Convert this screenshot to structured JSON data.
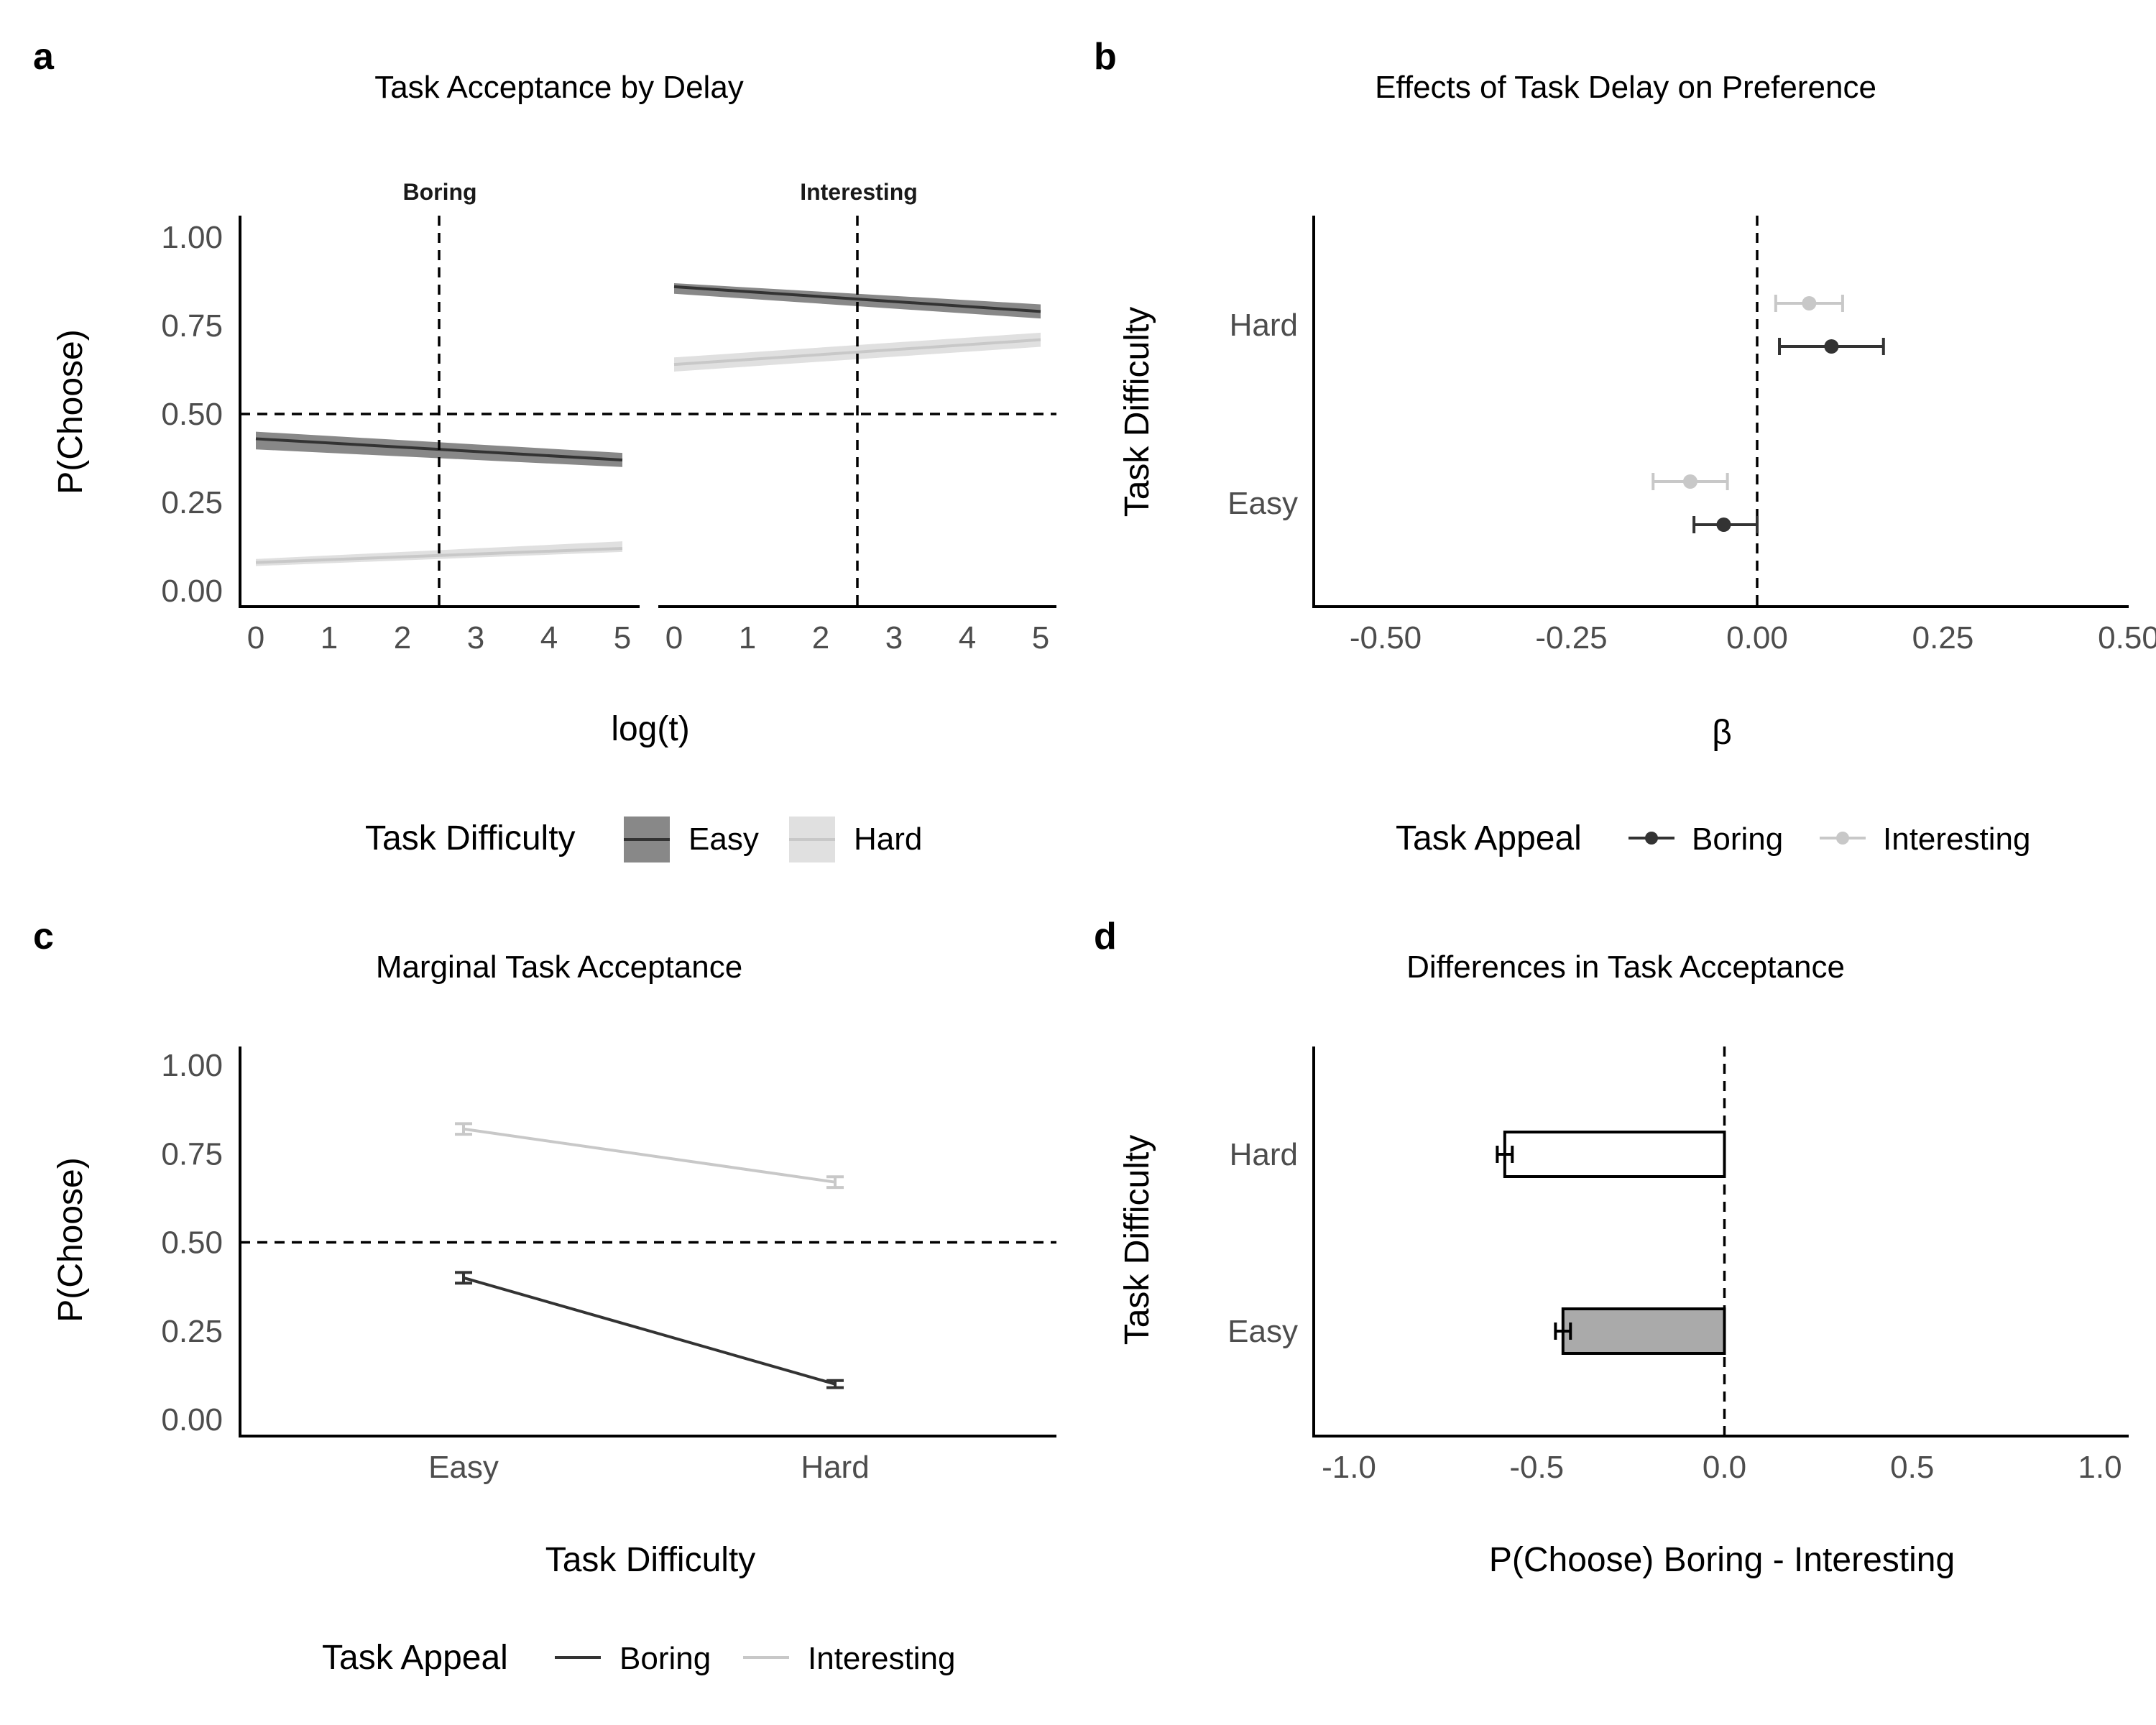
{
  "colors": {
    "boring": "#333333",
    "interesting": "#c8c8c8",
    "easy_band": "#888888",
    "hard_band": "#e0e0e0",
    "bar_easy": "#aaaaaa",
    "bar_hard": "#ffffff"
  },
  "chart_data": [
    {
      "panel": "a",
      "type": "line",
      "title": "Task Acceptance by Delay",
      "xlabel": "log(t)",
      "ylabel": "P(Choose)",
      "xlim": [
        0,
        5
      ],
      "ylim": [
        0,
        1
      ],
      "xticks": [
        "0",
        "1",
        "2",
        "3",
        "4",
        "5"
      ],
      "yticks": [
        "0.00",
        "0.25",
        "0.50",
        "0.75",
        "1.00"
      ],
      "reference_lines": {
        "x": 2.5,
        "y": 0.5
      },
      "legend": {
        "title": "Task Difficulty",
        "position": "bottom",
        "labels": [
          "Easy",
          "Hard"
        ]
      },
      "facets": [
        {
          "label": "Boring",
          "series": [
            {
              "name": "Easy",
              "x": [
                0,
                5
              ],
              "y": [
                0.43,
                0.37
              ],
              "lower": [
                0.4,
                0.35
              ],
              "upper": [
                0.45,
                0.39
              ]
            },
            {
              "name": "Hard",
              "x": [
                0,
                5
              ],
              "y": [
                0.08,
                0.12
              ],
              "lower": [
                0.07,
                0.11
              ],
              "upper": [
                0.09,
                0.14
              ]
            }
          ]
        },
        {
          "label": "Interesting",
          "series": [
            {
              "name": "Easy",
              "x": [
                0,
                5
              ],
              "y": [
                0.86,
                0.79
              ],
              "lower": [
                0.84,
                0.77
              ],
              "upper": [
                0.87,
                0.81
              ]
            },
            {
              "name": "Hard",
              "x": [
                0,
                5
              ],
              "y": [
                0.64,
                0.71
              ],
              "lower": [
                0.62,
                0.69
              ],
              "upper": [
                0.66,
                0.73
              ]
            }
          ]
        }
      ]
    },
    {
      "panel": "b",
      "type": "scatter",
      "title": "Effects of Task Delay on Preference",
      "xlabel": "β",
      "ylabel": "Task Difficulty",
      "xlim": [
        -0.5,
        0.5
      ],
      "xticks": [
        "-0.50",
        "-0.25",
        "0.00",
        "0.25",
        "0.50"
      ],
      "categories": [
        "Easy",
        "Hard"
      ],
      "reference_lines": {
        "x": 0
      },
      "legend": {
        "title": "Task Appeal",
        "position": "bottom",
        "labels": [
          "Boring",
          "Interesting"
        ]
      },
      "series": [
        {
          "name": "Boring",
          "estimate": [
            -0.045,
            0.1
          ],
          "lower": [
            -0.085,
            0.03
          ],
          "upper": [
            0.0,
            0.17
          ]
        },
        {
          "name": "Interesting",
          "estimate": [
            -0.09,
            0.07
          ],
          "lower": [
            -0.14,
            0.025
          ],
          "upper": [
            -0.04,
            0.115
          ]
        }
      ]
    },
    {
      "panel": "c",
      "type": "line",
      "title": "Marginal Task Acceptance",
      "xlabel": "Task Difficulty",
      "ylabel": "P(Choose)",
      "ylim": [
        0,
        1
      ],
      "yticks": [
        "0.00",
        "0.25",
        "0.50",
        "0.75",
        "1.00"
      ],
      "categories": [
        "Easy",
        "Hard"
      ],
      "reference_lines": {
        "y": 0.5
      },
      "legend": {
        "title": "Task Appeal",
        "position": "bottom",
        "labels": [
          "Boring",
          "Interesting"
        ]
      },
      "series": [
        {
          "name": "Boring",
          "values": [
            0.4,
            0.1
          ],
          "lower": [
            0.385,
            0.09
          ],
          "upper": [
            0.415,
            0.11
          ]
        },
        {
          "name": "Interesting",
          "values": [
            0.82,
            0.67
          ],
          "lower": [
            0.805,
            0.655
          ],
          "upper": [
            0.835,
            0.685
          ]
        }
      ]
    },
    {
      "panel": "d",
      "type": "bar",
      "title": "Differences in Task Acceptance",
      "xlabel": "P(Choose) Boring - Interesting",
      "ylabel": "Task Difficulty",
      "xlim": [
        -1,
        1
      ],
      "xticks": [
        "-1.0",
        "-0.5",
        "0.0",
        "0.5",
        "1.0"
      ],
      "categories": [
        "Easy",
        "Hard"
      ],
      "reference_lines": {
        "x": 0
      },
      "values": [
        -0.43,
        -0.585
      ],
      "lower": [
        -0.45,
        -0.605
      ],
      "upper": [
        -0.41,
        -0.565
      ]
    }
  ]
}
